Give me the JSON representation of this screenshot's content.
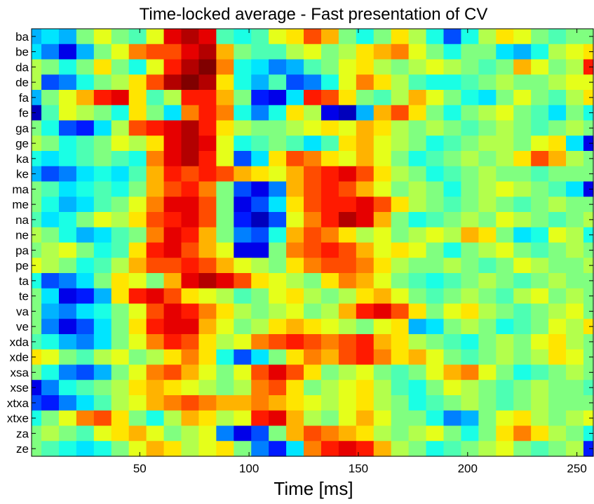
{
  "chart_data": {
    "type": "heatmap",
    "title": "Time-locked average - Fast presentation of CV",
    "xlabel": "Time [ms]",
    "ylabel": "",
    "xlim": [
      1,
      257
    ],
    "x_ticks": [
      50,
      100,
      150,
      200,
      250
    ],
    "x_tick_labels": [
      "50",
      "100",
      "150",
      "200",
      "250"
    ],
    "x_step_ms": 8,
    "y_categories": [
      "ba",
      "be",
      "da",
      "de",
      "fa",
      "fe",
      "ga",
      "ge",
      "ka",
      "ke",
      "ma",
      "me",
      "na",
      "ne",
      "pa",
      "pe",
      "ta",
      "te",
      "va",
      "ve",
      "xda",
      "xde",
      "xsa",
      "xse",
      "xtxa",
      "xtxe",
      "za",
      "ze"
    ],
    "colormap": "jet",
    "value_range": [
      -1,
      1
    ],
    "x_samples": [
      1,
      9,
      17,
      25,
      33,
      41,
      49,
      57,
      65,
      73,
      81,
      89,
      97,
      105,
      113,
      121,
      129,
      137,
      145,
      153,
      161,
      169,
      177,
      185,
      193,
      201,
      209,
      217,
      225,
      233,
      241,
      249,
      257
    ],
    "values": [
      [
        -0.4,
        -0.3,
        -0.4,
        0.0,
        0.2,
        0.0,
        -0.1,
        0.2,
        0.8,
        0.9,
        0.8,
        -0.1,
        -0.2,
        -0.1,
        0.2,
        0.3,
        0.6,
        0.4,
        0.0,
        -0.2,
        0.0,
        0.3,
        0.1,
        -0.2,
        -0.6,
        -0.2,
        0.1,
        0.3,
        0.2,
        0.0,
        -0.1,
        0.0,
        0.0
      ],
      [
        -0.3,
        -0.5,
        -0.8,
        -0.4,
        0.0,
        0.2,
        0.5,
        0.6,
        0.6,
        0.8,
        0.9,
        0.4,
        0.0,
        -0.1,
        -0.1,
        0.1,
        0.2,
        0.0,
        0.1,
        0.3,
        0.4,
        0.5,
        0.2,
        0.0,
        -0.2,
        0.0,
        0.0,
        -0.3,
        -0.4,
        -0.2,
        0.1,
        0.2,
        0.3
      ],
      [
        0.1,
        0.0,
        -0.2,
        0.0,
        0.3,
        0.0,
        -0.2,
        0.2,
        0.7,
        0.9,
        1.0,
        0.5,
        -0.2,
        -0.3,
        -0.5,
        -0.4,
        -0.1,
        0.0,
        0.2,
        0.3,
        0.1,
        0.0,
        0.1,
        0.2,
        0.1,
        0.0,
        -0.1,
        0.0,
        0.4,
        0.2,
        0.0,
        0.1,
        0.7
      ],
      [
        0.1,
        -0.6,
        -0.5,
        -0.2,
        0.0,
        0.1,
        0.3,
        0.6,
        0.9,
        1.0,
        0.9,
        0.3,
        -0.2,
        -0.4,
        -0.1,
        -0.6,
        -0.5,
        -0.2,
        0.2,
        0.5,
        0.3,
        0.1,
        -0.1,
        -0.2,
        -0.2,
        -0.1,
        0.0,
        0.1,
        0.0,
        0.0,
        0.1,
        0.2,
        0.2
      ],
      [
        -0.4,
        0.0,
        0.2,
        0.4,
        0.7,
        0.8,
        0.3,
        -0.1,
        0.1,
        0.7,
        0.7,
        0.4,
        0.0,
        -0.7,
        -0.8,
        -0.3,
        0.7,
        0.6,
        0.3,
        0.0,
        -0.1,
        0.1,
        0.4,
        0.2,
        0.0,
        -0.2,
        -0.3,
        0.0,
        0.2,
        0.0,
        -0.1,
        0.1,
        0.3
      ],
      [
        -0.9,
        -0.1,
        0.2,
        0.1,
        0.0,
        -0.2,
        0.3,
        0.0,
        -0.3,
        0.5,
        0.7,
        0.5,
        -0.2,
        -0.5,
        -0.2,
        0.3,
        0.1,
        -0.8,
        -0.9,
        -0.4,
        0.4,
        0.6,
        0.3,
        0.0,
        -0.2,
        0.0,
        0.1,
        0.2,
        0.0,
        -0.1,
        -0.3,
        0.0,
        -0.2
      ],
      [
        0.0,
        -0.2,
        -0.6,
        -0.7,
        -0.3,
        0.1,
        0.6,
        0.7,
        0.8,
        0.9,
        0.7,
        0.3,
        0.1,
        0.0,
        0.0,
        0.1,
        0.2,
        0.3,
        0.2,
        0.4,
        0.3,
        0.1,
        0.0,
        0.1,
        0.0,
        -0.1,
        0.0,
        0.1,
        0.0,
        -0.1,
        0.0,
        0.1,
        0.0
      ],
      [
        0.1,
        0.0,
        -0.2,
        -0.1,
        0.0,
        0.2,
        0.1,
        0.3,
        0.8,
        0.9,
        0.8,
        0.2,
        -0.2,
        -0.1,
        0.0,
        -0.1,
        -0.3,
        -0.1,
        0.3,
        0.4,
        0.2,
        0.1,
        0.0,
        -0.2,
        -0.1,
        0.0,
        0.1,
        0.1,
        0.0,
        0.2,
        0.3,
        -0.3,
        -0.8
      ],
      [
        -0.2,
        -0.3,
        -0.2,
        -0.1,
        0.0,
        -0.1,
        -0.2,
        0.5,
        0.8,
        0.9,
        0.7,
        0.2,
        -0.6,
        -0.3,
        0.3,
        0.6,
        0.5,
        0.3,
        0.2,
        0.4,
        0.2,
        0.0,
        -0.2,
        -0.1,
        0.0,
        0.1,
        0.0,
        0.1,
        0.3,
        0.6,
        0.4,
        0.1,
        0.0
      ],
      [
        -0.4,
        -0.6,
        -0.5,
        -0.3,
        -0.2,
        -0.3,
        -0.1,
        0.4,
        0.7,
        0.6,
        0.7,
        0.6,
        0.4,
        0.3,
        0.2,
        0.4,
        0.6,
        0.7,
        0.8,
        0.6,
        0.3,
        0.1,
        0.0,
        -0.2,
        -0.1,
        0.0,
        0.1,
        0.0,
        0.0,
        -0.1,
        0.0,
        0.0,
        0.0
      ],
      [
        0.0,
        -0.1,
        -0.3,
        -0.2,
        -0.1,
        -0.2,
        0.0,
        0.4,
        0.6,
        0.7,
        0.5,
        0.0,
        -0.6,
        -0.8,
        -0.5,
        0.4,
        0.6,
        0.7,
        0.6,
        0.4,
        0.2,
        0.0,
        0.1,
        0.0,
        -0.2,
        0.0,
        0.1,
        0.2,
        0.1,
        0.0,
        -0.1,
        -0.3,
        -0.8
      ],
      [
        0.0,
        -0.2,
        -0.4,
        -0.3,
        -0.1,
        0.0,
        0.2,
        0.5,
        0.8,
        0.8,
        0.6,
        0.0,
        -0.8,
        -0.6,
        -0.3,
        0.3,
        0.6,
        0.7,
        0.7,
        0.8,
        0.6,
        0.3,
        0.1,
        0.0,
        -0.1,
        0.0,
        0.1,
        0.0,
        -0.1,
        0.0,
        0.1,
        0.0,
        0.0
      ],
      [
        -0.1,
        -0.3,
        -0.2,
        0.0,
        0.2,
        0.1,
        0.3,
        0.6,
        0.7,
        0.8,
        0.6,
        0.0,
        -0.7,
        -0.9,
        -0.6,
        0.2,
        0.5,
        0.7,
        0.9,
        0.8,
        0.4,
        0.0,
        -0.2,
        -0.1,
        0.0,
        0.1,
        0.0,
        0.2,
        0.1,
        0.0,
        -0.1,
        0.0,
        0.1
      ],
      [
        0.1,
        0.0,
        -0.2,
        -0.4,
        -0.3,
        -0.1,
        0.0,
        0.5,
        0.8,
        0.7,
        0.4,
        0.0,
        -0.5,
        -0.6,
        -0.2,
        0.4,
        0.6,
        0.5,
        0.3,
        0.1,
        0.2,
        0.0,
        0.1,
        0.2,
        0.1,
        0.4,
        0.3,
        0.0,
        -0.3,
        -0.2,
        0.2,
        0.1,
        -0.2
      ],
      [
        0.0,
        0.1,
        0.2,
        0.0,
        -0.2,
        -0.1,
        0.3,
        0.7,
        0.8,
        0.6,
        0.4,
        0.2,
        -0.8,
        -0.8,
        0.0,
        0.5,
        0.6,
        0.7,
        0.6,
        0.4,
        0.2,
        0.3,
        0.2,
        0.0,
        -0.2,
        0.0,
        0.1,
        0.2,
        0.0,
        -0.1,
        0.0,
        0.1,
        0.0
      ],
      [
        0.2,
        0.1,
        0.0,
        -0.2,
        -0.1,
        0.1,
        0.4,
        0.6,
        0.6,
        0.7,
        0.6,
        0.4,
        0.2,
        0.1,
        0.0,
        0.3,
        0.5,
        0.6,
        0.6,
        0.5,
        0.3,
        0.1,
        0.0,
        0.0,
        0.1,
        0.0,
        -0.1,
        0.0,
        0.2,
        0.1,
        0.0,
        0.0,
        0.1
      ],
      [
        -0.2,
        -0.6,
        -0.5,
        -0.3,
        0.0,
        0.3,
        0.2,
        0.0,
        0.4,
        0.8,
        0.9,
        0.8,
        0.6,
        0.3,
        0.2,
        0.1,
        0.0,
        0.3,
        0.5,
        0.4,
        0.2,
        0.0,
        -0.1,
        -0.2,
        -0.1,
        0.0,
        0.1,
        0.0,
        -0.1,
        0.0,
        0.1,
        0.0,
        0.0
      ],
      [
        0.0,
        -0.3,
        -0.8,
        -0.7,
        -0.4,
        0.3,
        0.7,
        0.8,
        0.6,
        0.3,
        0.2,
        0.1,
        -0.1,
        0.0,
        0.2,
        0.3,
        0.1,
        0.0,
        0.1,
        0.3,
        0.4,
        0.2,
        0.0,
        -0.1,
        0.0,
        0.1,
        0.0,
        -0.1,
        0.1,
        0.2,
        0.0,
        0.1,
        0.0
      ],
      [
        0.0,
        -0.4,
        -0.5,
        -0.3,
        -0.2,
        0.0,
        0.2,
        0.6,
        0.8,
        0.7,
        0.5,
        0.3,
        0.1,
        0.0,
        0.1,
        0.2,
        0.0,
        0.1,
        0.4,
        0.7,
        0.8,
        0.6,
        0.3,
        0.0,
        0.2,
        0.3,
        0.1,
        0.0,
        -0.1,
        0.0,
        0.1,
        0.2,
        0.0
      ],
      [
        0.0,
        -0.5,
        -0.8,
        -0.6,
        -0.3,
        0.0,
        0.3,
        0.7,
        0.8,
        0.8,
        0.4,
        0.2,
        0.0,
        0.1,
        0.3,
        0.4,
        0.3,
        0.2,
        0.1,
        0.0,
        0.2,
        0.3,
        -0.4,
        -0.3,
        0.0,
        0.1,
        0.0,
        -0.2,
        -0.1,
        0.0,
        0.2,
        0.1,
        0.3
      ],
      [
        -0.1,
        -0.2,
        -0.4,
        -0.5,
        -0.3,
        0.0,
        0.2,
        0.5,
        0.7,
        0.6,
        0.3,
        0.1,
        0.2,
        0.5,
        0.6,
        0.7,
        0.6,
        0.5,
        0.6,
        0.7,
        0.4,
        0.3,
        0.1,
        0.0,
        -0.1,
        -0.2,
        0.0,
        0.1,
        0.0,
        0.2,
        0.3,
        0.1,
        0.0
      ],
      [
        0.3,
        0.2,
        0.0,
        -0.1,
        0.1,
        0.2,
        0.0,
        0.1,
        0.3,
        0.5,
        0.3,
        -0.2,
        -0.6,
        -0.3,
        0.0,
        0.3,
        0.5,
        0.4,
        0.6,
        0.7,
        0.5,
        0.3,
        0.4,
        0.2,
        0.0,
        -0.1,
        0.0,
        0.1,
        0.0,
        0.1,
        0.3,
        0.2,
        0.0
      ],
      [
        0.0,
        -0.2,
        -0.5,
        -0.6,
        -0.4,
        0.0,
        0.2,
        0.5,
        0.6,
        0.4,
        0.2,
        0.0,
        0.2,
        0.6,
        0.8,
        0.6,
        0.3,
        0.0,
        0.1,
        0.2,
        0.0,
        -0.1,
        0.0,
        0.2,
        0.4,
        0.5,
        0.2,
        0.0,
        -0.2,
        -0.1,
        0.0,
        0.1,
        0.0
      ],
      [
        -0.8,
        -0.5,
        -0.2,
        -0.1,
        0.0,
        0.1,
        0.3,
        0.4,
        0.3,
        0.2,
        0.1,
        0.0,
        0.1,
        0.5,
        0.6,
        0.3,
        0.0,
        0.1,
        0.2,
        0.3,
        0.1,
        -0.1,
        -0.2,
        0.0,
        0.2,
        0.1,
        0.0,
        -0.1,
        0.0,
        0.1,
        0.0,
        0.0,
        -0.1
      ],
      [
        -0.6,
        -0.7,
        -0.5,
        -0.3,
        -0.1,
        0.1,
        0.2,
        0.4,
        0.5,
        0.6,
        0.5,
        0.4,
        0.4,
        0.5,
        0.4,
        0.3,
        0.2,
        0.1,
        0.2,
        0.3,
        0.1,
        0.0,
        -0.2,
        -0.1,
        0.0,
        0.1,
        0.0,
        -0.1,
        0.0,
        0.1,
        0.0,
        0.0,
        0.0
      ],
      [
        -0.2,
        0.0,
        0.2,
        0.5,
        0.6,
        0.3,
        0.0,
        -0.2,
        0.1,
        0.4,
        0.3,
        0.1,
        0.2,
        0.7,
        0.8,
        0.4,
        0.1,
        0.0,
        0.2,
        0.4,
        0.2,
        0.0,
        0.0,
        -0.2,
        -0.5,
        -0.4,
        0.0,
        0.2,
        0.3,
        0.1,
        0.0,
        0.1,
        0.2
      ],
      [
        0.0,
        0.1,
        0.0,
        -0.1,
        0.2,
        0.3,
        0.4,
        0.2,
        0.0,
        0.1,
        0.2,
        -0.5,
        -0.8,
        -0.6,
        0.0,
        0.4,
        0.6,
        0.5,
        0.4,
        0.3,
        0.1,
        0.0,
        0.1,
        0.2,
        0.0,
        -0.2,
        0.0,
        0.3,
        0.5,
        0.3,
        0.1,
        0.0,
        -0.2
      ],
      [
        0.0,
        -0.1,
        -0.2,
        -0.3,
        -0.2,
        0.0,
        0.2,
        0.4,
        0.3,
        0.1,
        0.2,
        0.3,
        0.0,
        -0.5,
        -0.7,
        -0.3,
        0.5,
        0.7,
        0.8,
        0.7,
        0.4,
        0.1,
        0.0,
        -0.2,
        -0.1,
        0.0,
        0.1,
        0.2,
        0.0,
        -0.1,
        0.0,
        0.1,
        -0.7
      ]
    ]
  }
}
